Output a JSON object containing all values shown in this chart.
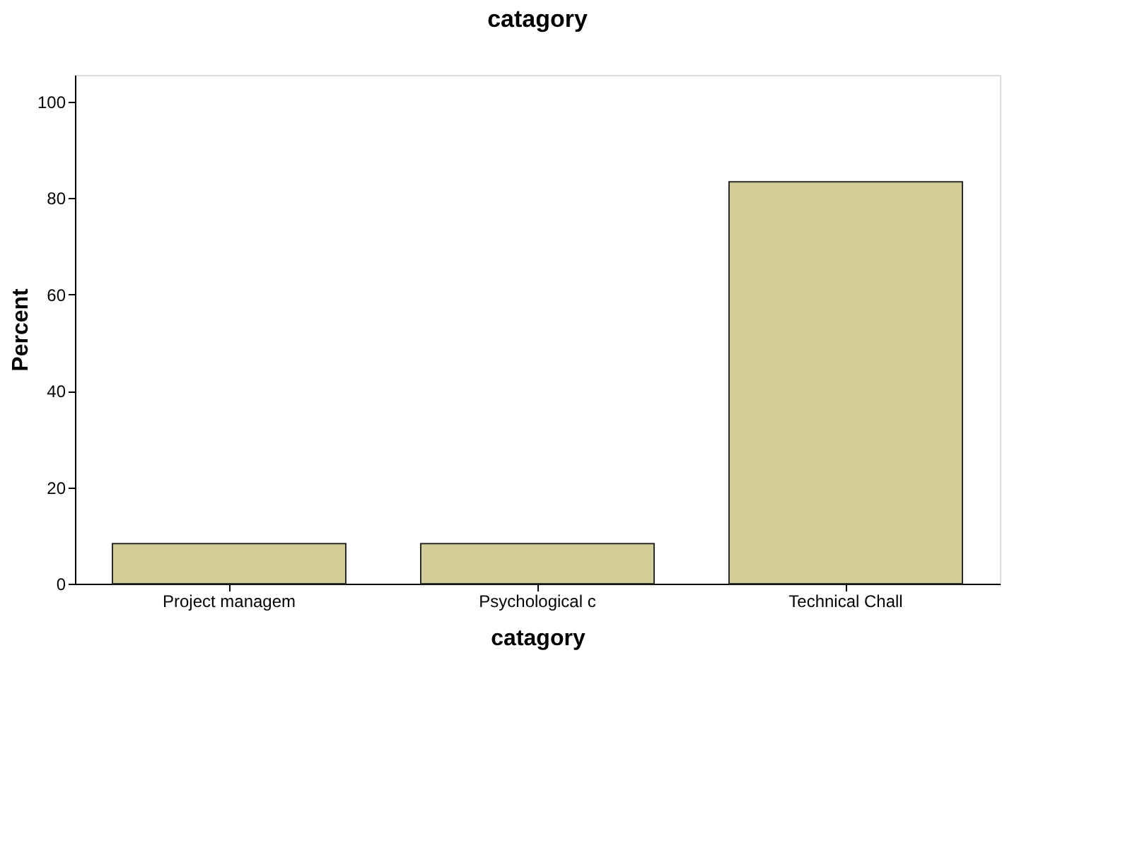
{
  "chart_data": {
    "type": "bar",
    "title": "catagory",
    "xlabel": "catagory",
    "ylabel": "Percent",
    "categories": [
      "Project managem",
      "Psychological c",
      "Technical Chall"
    ],
    "values": [
      8.33,
      8.33,
      83.33
    ],
    "color": "#d3ce97",
    "ylim": [
      0,
      105.5
    ],
    "yticks": [
      0,
      20,
      40,
      60,
      80,
      100
    ],
    "grid": false
  }
}
